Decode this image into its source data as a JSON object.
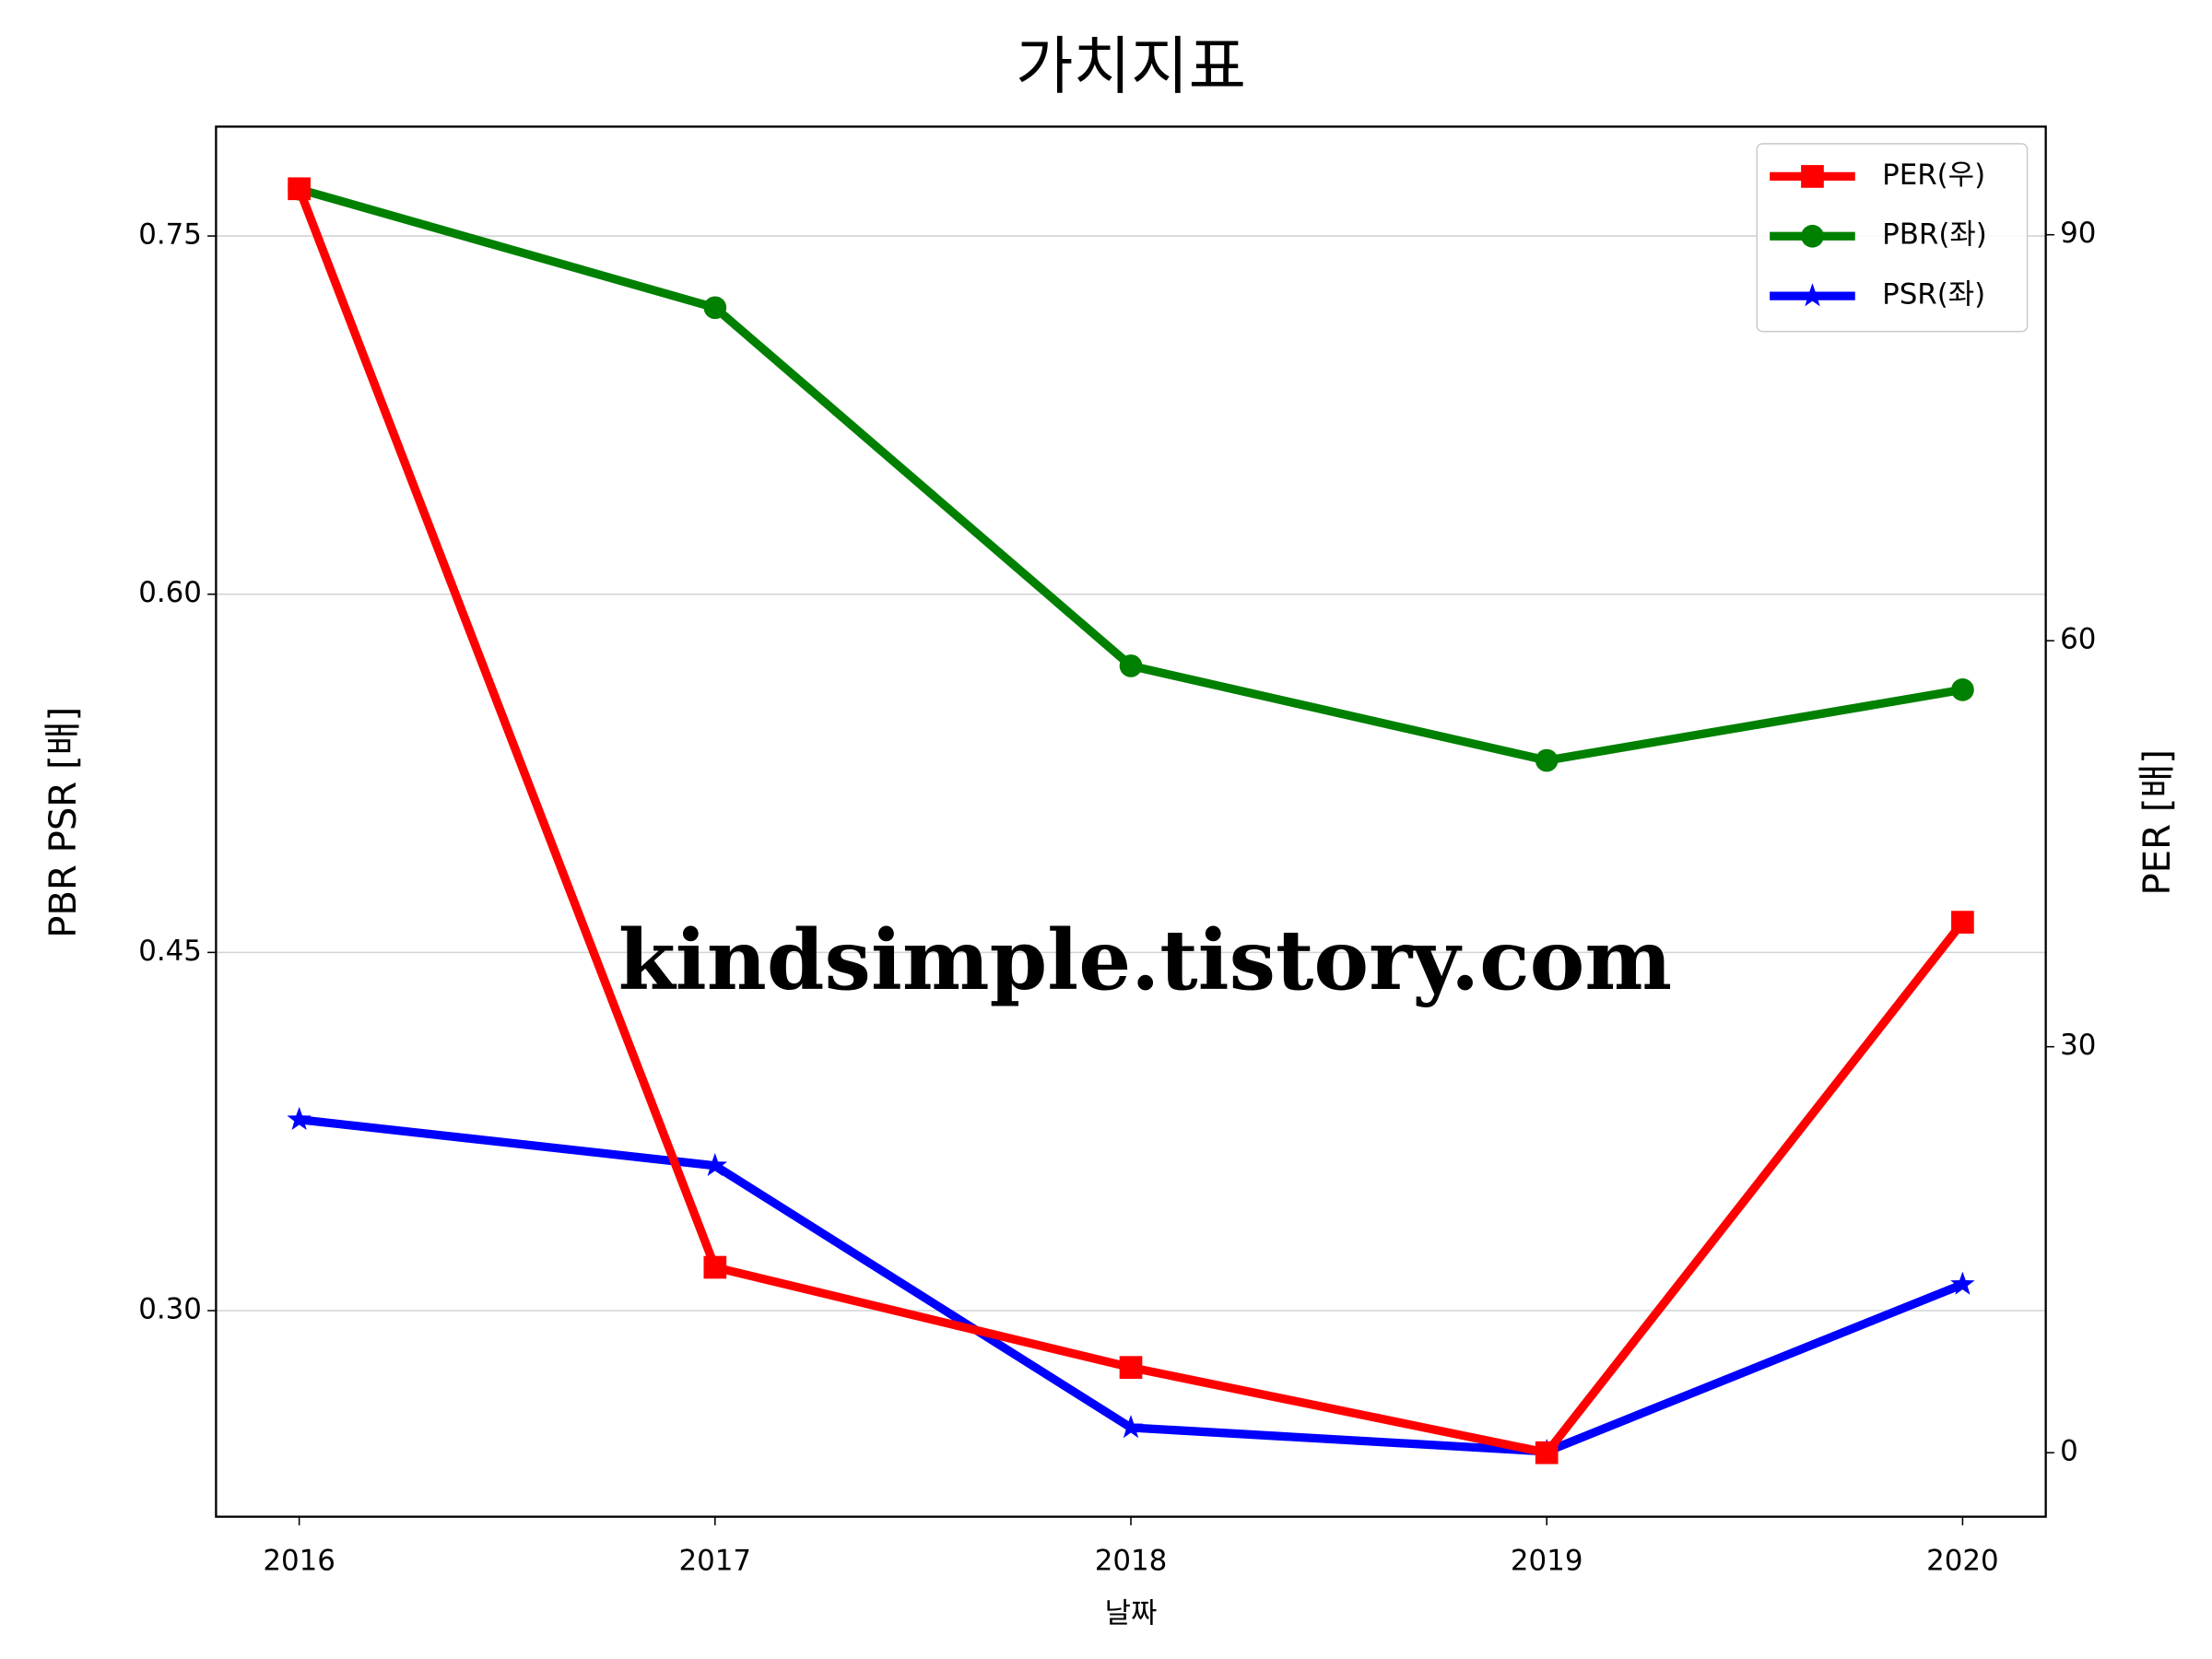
{
  "chart_data": {
    "type": "line",
    "title": "가치지표",
    "x_label": "날짜",
    "y_label": "PBR PSR [배]",
    "y2_label": "PER [배]",
    "y_label_color": "#008000",
    "y2_label_color": "#ff0000",
    "categories": [
      "2016",
      "2017",
      "2018",
      "2019",
      "2020"
    ],
    "series": [
      {
        "name": "PER(우)",
        "color": "#ff0000",
        "marker": "square",
        "axis": "y2",
        "values": [
          93.4,
          13.7,
          6.3,
          0,
          39.2
        ]
      },
      {
        "name": "PBR(좌)",
        "color": "#008000",
        "marker": "circle",
        "values": [
          0.7696,
          0.72,
          0.57,
          0.5304,
          0.56
        ]
      },
      {
        "name": "PSR(좌)",
        "color": "#0000ff",
        "marker": "star",
        "values": [
          0.38,
          0.3607,
          0.251,
          0.241,
          0.311
        ]
      }
    ],
    "ylim": [
      0.2137,
      0.7958
    ],
    "yticks": [
      {
        "value": 0.3,
        "label": "0.30"
      },
      {
        "value": 0.45,
        "label": "0.45"
      },
      {
        "value": 0.6,
        "label": "0.60"
      },
      0.75
    ],
    "y2lim": [
      -4.73,
      97.99
    ],
    "y2ticks": [
      0,
      30,
      60,
      90
    ],
    "grid": true,
    "legend": "upper right",
    "annotations": [
      {
        "text": "kindsimple.tistory.com",
        "color": "#e0a0ec"
      }
    ]
  }
}
